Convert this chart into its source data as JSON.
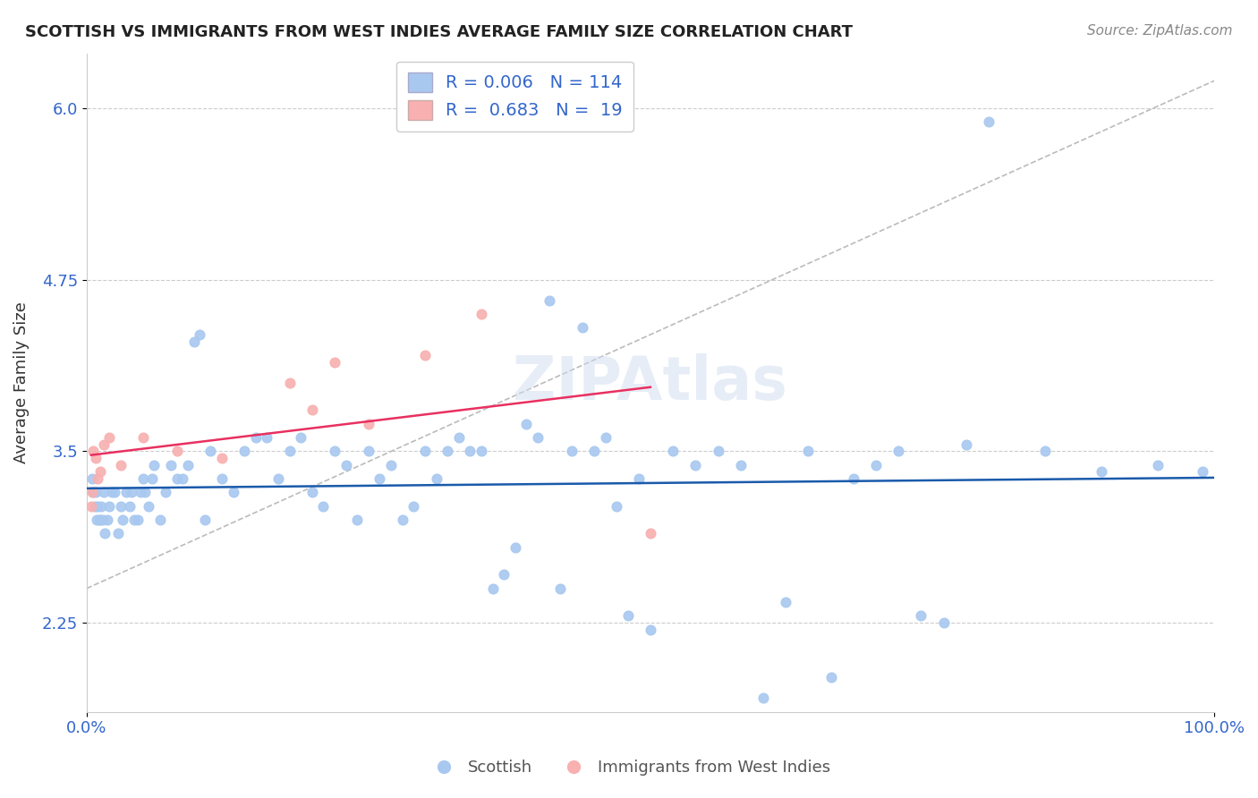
{
  "title": "SCOTTISH VS IMMIGRANTS FROM WEST INDIES AVERAGE FAMILY SIZE CORRELATION CHART",
  "source": "Source: ZipAtlas.com",
  "ylabel": "Average Family Size",
  "xlabel": "",
  "xlim": [
    0,
    100
  ],
  "ylim": [
    1.6,
    6.4
  ],
  "yticks": [
    2.25,
    3.5,
    4.75,
    6.0
  ],
  "xtick_labels": [
    "0.0%",
    "100.0%"
  ],
  "bg_color": "#ffffff",
  "grid_color": "#cccccc",
  "watermark": "ZIPAtlas",
  "scottish_color": "#a8c8f0",
  "scottish_line_color": "#1a5aab",
  "pink_color": "#f8b0b0",
  "pink_line_color": "#e83060",
  "legend_R1": "0.006",
  "legend_N1": "114",
  "legend_R2": "0.683",
  "legend_N2": "19",
  "scottish_x": [
    0.5,
    0.6,
    0.7,
    0.8,
    0.9,
    1.0,
    1.1,
    1.2,
    1.3,
    1.4,
    1.5,
    1.6,
    1.8,
    2.0,
    2.2,
    2.5,
    2.8,
    3.0,
    3.2,
    3.5,
    3.8,
    4.0,
    4.2,
    4.5,
    4.8,
    5.0,
    5.2,
    5.5,
    5.8,
    6.0,
    6.5,
    7.0,
    7.5,
    8.0,
    8.5,
    9.0,
    9.5,
    10.0,
    10.5,
    11.0,
    12.0,
    13.0,
    14.0,
    15.0,
    16.0,
    17.0,
    18.0,
    19.0,
    20.0,
    21.0,
    22.0,
    23.0,
    24.0,
    25.0,
    26.0,
    27.0,
    28.0,
    29.0,
    30.0,
    31.0,
    32.0,
    33.0,
    34.0,
    35.0,
    36.0,
    37.0,
    38.0,
    39.0,
    40.0,
    41.0,
    42.0,
    43.0,
    44.0,
    45.0,
    46.0,
    47.0,
    48.0,
    49.0,
    50.0,
    52.0,
    54.0,
    56.0,
    58.0,
    60.0,
    62.0,
    64.0,
    66.0,
    68.0,
    70.0,
    72.0,
    74.0,
    76.0,
    78.0,
    80.0,
    85.0,
    90.0,
    95.0,
    99.0
  ],
  "scottish_y": [
    3.3,
    3.2,
    3.1,
    3.2,
    3.0,
    3.1,
    3.0,
    3.0,
    3.1,
    3.0,
    3.2,
    2.9,
    3.0,
    3.1,
    3.2,
    3.2,
    2.9,
    3.1,
    3.0,
    3.2,
    3.1,
    3.2,
    3.0,
    3.0,
    3.2,
    3.3,
    3.2,
    3.1,
    3.3,
    3.4,
    3.0,
    3.2,
    3.4,
    3.3,
    3.3,
    3.4,
    4.3,
    4.35,
    3.0,
    3.5,
    3.3,
    3.2,
    3.5,
    3.6,
    3.6,
    3.3,
    3.5,
    3.6,
    3.2,
    3.1,
    3.5,
    3.4,
    3.0,
    3.5,
    3.3,
    3.4,
    3.0,
    3.1,
    3.5,
    3.3,
    3.5,
    3.6,
    3.5,
    3.5,
    2.5,
    2.6,
    2.8,
    3.7,
    3.6,
    4.6,
    2.5,
    3.5,
    4.4,
    3.5,
    3.6,
    3.1,
    2.3,
    3.3,
    2.2,
    3.5,
    3.4,
    3.5,
    3.4,
    1.7,
    2.4,
    3.5,
    1.85,
    3.3,
    3.4,
    3.5,
    2.3,
    2.25,
    3.55,
    5.9,
    3.5,
    3.35,
    3.4,
    3.35
  ],
  "pink_x": [
    0.4,
    0.5,
    0.6,
    0.8,
    1.0,
    1.2,
    1.5,
    2.0,
    3.0,
    5.0,
    8.0,
    12.0,
    18.0,
    20.0,
    22.0,
    25.0,
    30.0,
    35.0,
    50.0
  ],
  "pink_y": [
    3.1,
    3.2,
    3.5,
    3.45,
    3.3,
    3.35,
    3.55,
    3.6,
    3.4,
    3.6,
    3.5,
    3.45,
    4.0,
    3.8,
    4.15,
    3.7,
    4.2,
    4.5,
    2.9
  ]
}
